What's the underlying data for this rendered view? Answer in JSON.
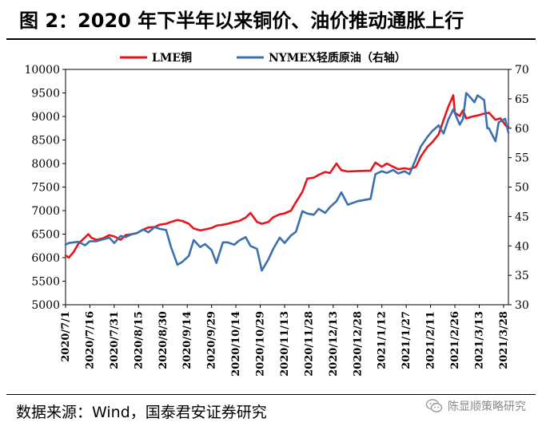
{
  "figure": {
    "title": "图 2：2020 年下半年以来铜价、油价推动通胀上行",
    "source": "数据来源：Wind，国泰君安证券研究",
    "watermark": "陈显顺策略研究"
  },
  "colors": {
    "lme": "#e8141b",
    "nymex": "#3b70b0"
  },
  "chart_data": {
    "type": "line",
    "title": "",
    "legend_position": "top",
    "grid": false,
    "x_tick_labels": [
      "2020/7/1",
      "2020/7/16",
      "2020/7/31",
      "2020/8/15",
      "2020/8/30",
      "2020/9/14",
      "2020/9/29",
      "2020/10/14",
      "2020/10/29",
      "2020/11/13",
      "2020/11/28",
      "2020/12/13",
      "2020/12/28",
      "2021/1/12",
      "2021/1/27",
      "2021/2/11",
      "2021/2/26",
      "2021/3/13",
      "2021/3/28"
    ],
    "y_left": {
      "min": 5000,
      "max": 10000,
      "step": 500,
      "ticks": [
        "5000",
        "5500",
        "6000",
        "6500",
        "7000",
        "7500",
        "8000",
        "8500",
        "9000",
        "9500",
        "10000"
      ]
    },
    "y_right": {
      "min": 30,
      "max": 70,
      "step": 5,
      "ticks": [
        "30",
        "35",
        "40",
        "45",
        "50",
        "55",
        "60",
        "65",
        "70"
      ]
    },
    "series": [
      {
        "name": "LME铜",
        "axis": "left",
        "color": "#e8141b",
        "x": [
          "2020-07-01",
          "2020-07-03",
          "2020-07-06",
          "2020-07-09",
          "2020-07-13",
          "2020-07-15",
          "2020-07-17",
          "2020-07-20",
          "2020-07-24",
          "2020-07-28",
          "2020-07-31",
          "2020-08-04",
          "2020-08-07",
          "2020-08-11",
          "2020-08-14",
          "2020-08-18",
          "2020-08-21",
          "2020-08-25",
          "2020-08-28",
          "2020-09-01",
          "2020-09-04",
          "2020-09-08",
          "2020-09-11",
          "2020-09-15",
          "2020-09-18",
          "2020-09-22",
          "2020-09-25",
          "2020-09-29",
          "2020-10-02",
          "2020-10-06",
          "2020-10-09",
          "2020-10-13",
          "2020-10-16",
          "2020-10-20",
          "2020-10-23",
          "2020-10-27",
          "2020-10-30",
          "2020-11-03",
          "2020-11-06",
          "2020-11-10",
          "2020-11-13",
          "2020-11-17",
          "2020-11-20",
          "2020-11-24",
          "2020-11-27",
          "2020-12-01",
          "2020-12-04",
          "2020-12-08",
          "2020-12-11",
          "2020-12-15",
          "2020-12-18",
          "2020-12-22",
          "2020-12-28",
          "2021-01-05",
          "2021-01-08",
          "2021-01-12",
          "2021-01-15",
          "2021-01-19",
          "2021-01-22",
          "2021-01-26",
          "2021-01-29",
          "2021-02-02",
          "2021-02-05",
          "2021-02-09",
          "2021-02-12",
          "2021-02-16",
          "2021-02-19",
          "2021-02-22",
          "2021-02-25",
          "2021-02-26",
          "2021-03-01",
          "2021-03-03",
          "2021-03-05",
          "2021-03-09",
          "2021-03-12",
          "2021-03-16",
          "2021-03-19",
          "2021-03-23",
          "2021-03-26",
          "2021-03-30",
          "2021-03-31"
        ],
        "values": [
          6050,
          6000,
          6120,
          6300,
          6430,
          6500,
          6420,
          6380,
          6410,
          6480,
          6450,
          6380,
          6480,
          6500,
          6520,
          6600,
          6640,
          6650,
          6700,
          6720,
          6760,
          6800,
          6780,
          6720,
          6620,
          6580,
          6600,
          6630,
          6680,
          6700,
          6720,
          6760,
          6780,
          6850,
          6950,
          6760,
          6720,
          6760,
          6860,
          6920,
          6940,
          7000,
          7180,
          7400,
          7680,
          7700,
          7760,
          7820,
          7800,
          8000,
          7860,
          7830,
          7840,
          7850,
          8020,
          7930,
          8000,
          7930,
          7880,
          7900,
          7880,
          7930,
          8150,
          8350,
          8450,
          8620,
          8920,
          9210,
          9450,
          9080,
          9010,
          9130,
          8960,
          9000,
          9020,
          9060,
          9080,
          8930,
          8960,
          8780,
          8780
        ]
      },
      {
        "name": "NYMEX轻质原油（右轴）",
        "axis": "right",
        "color": "#3b70b0",
        "x": [
          "2020-07-01",
          "2020-07-03",
          "2020-07-06",
          "2020-07-09",
          "2020-07-13",
          "2020-07-16",
          "2020-07-20",
          "2020-07-24",
          "2020-07-28",
          "2020-07-31",
          "2020-08-04",
          "2020-08-07",
          "2020-08-11",
          "2020-08-14",
          "2020-08-18",
          "2020-08-21",
          "2020-08-25",
          "2020-08-28",
          "2020-09-01",
          "2020-09-04",
          "2020-09-08",
          "2020-09-11",
          "2020-09-15",
          "2020-09-18",
          "2020-09-22",
          "2020-09-25",
          "2020-09-29",
          "2020-10-02",
          "2020-10-06",
          "2020-10-09",
          "2020-10-13",
          "2020-10-16",
          "2020-10-20",
          "2020-10-23",
          "2020-10-27",
          "2020-10-30",
          "2020-11-03",
          "2020-11-06",
          "2020-11-10",
          "2020-11-13",
          "2020-11-17",
          "2020-11-20",
          "2020-11-24",
          "2020-11-27",
          "2020-12-01",
          "2020-12-04",
          "2020-12-08",
          "2020-12-11",
          "2020-12-15",
          "2020-12-18",
          "2020-12-22",
          "2020-12-28",
          "2021-01-05",
          "2021-01-08",
          "2021-01-12",
          "2021-01-15",
          "2021-01-19",
          "2021-01-22",
          "2021-01-26",
          "2021-01-29",
          "2021-02-02",
          "2021-02-05",
          "2021-02-09",
          "2021-02-12",
          "2021-02-16",
          "2021-02-19",
          "2021-02-22",
          "2021-02-25",
          "2021-03-01",
          "2021-03-03",
          "2021-03-05",
          "2021-03-08",
          "2021-03-10",
          "2021-03-12",
          "2021-03-16",
          "2021-03-18",
          "2021-03-19",
          "2021-03-23",
          "2021-03-25",
          "2021-03-29",
          "2021-03-31"
        ],
        "values": [
          40.2,
          40.5,
          40.6,
          40.7,
          40.1,
          40.8,
          40.8,
          41.1,
          41.4,
          40.5,
          41.7,
          41.5,
          42.0,
          42.2,
          42.8,
          42.3,
          43.2,
          42.9,
          42.7,
          39.8,
          36.8,
          37.3,
          38.3,
          41.0,
          39.8,
          40.3,
          39.3,
          37.1,
          40.6,
          40.6,
          40.2,
          40.9,
          41.5,
          40.0,
          39.5,
          35.8,
          37.7,
          39.5,
          41.4,
          40.5,
          41.8,
          42.4,
          45.9,
          45.5,
          45.3,
          46.3,
          45.6,
          46.6,
          47.6,
          49.1,
          47.0,
          47.6,
          48.0,
          52.2,
          52.7,
          52.4,
          52.9,
          52.3,
          52.7,
          52.2,
          54.8,
          56.9,
          58.5,
          59.5,
          60.5,
          59.1,
          61.5,
          63.2,
          60.6,
          61.6,
          66.0,
          65.1,
          64.4,
          65.6,
          64.8,
          60.0,
          60.0,
          57.8,
          61.0,
          61.6,
          59.2
        ]
      }
    ]
  }
}
